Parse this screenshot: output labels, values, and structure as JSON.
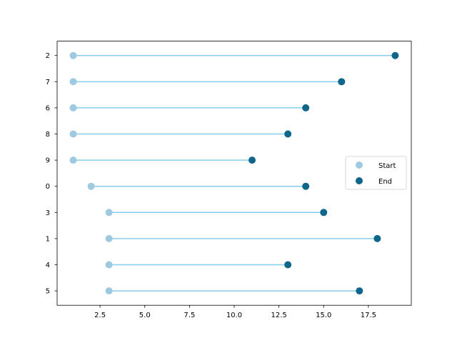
{
  "chart_data": {
    "type": "dumbbell",
    "orientation": "horizontal",
    "title": "",
    "xlabel": "",
    "ylabel": "",
    "xlim": [
      0.1,
      19.9
    ],
    "xticks": [
      2.5,
      5.0,
      7.5,
      10.0,
      12.5,
      15.0,
      17.5
    ],
    "xtick_labels": [
      "2.5",
      "5.0",
      "7.5",
      "10.0",
      "12.5",
      "15.0",
      "17.5"
    ],
    "categories_top_to_bottom": [
      "2",
      "7",
      "6",
      "8",
      "9",
      "0",
      "3",
      "1",
      "4",
      "5"
    ],
    "series": [
      {
        "name": "Start",
        "values": [
          1,
          1,
          1,
          1,
          1,
          2,
          3,
          3,
          3,
          3
        ]
      },
      {
        "name": "End",
        "values": [
          19,
          16,
          14,
          13,
          11,
          14,
          15,
          18,
          13,
          17
        ]
      }
    ],
    "connector_color": "#87ceeb",
    "start_color": "#9ecae1",
    "end_color": "#0e668b",
    "legend_position": "center-right",
    "grid": false
  }
}
